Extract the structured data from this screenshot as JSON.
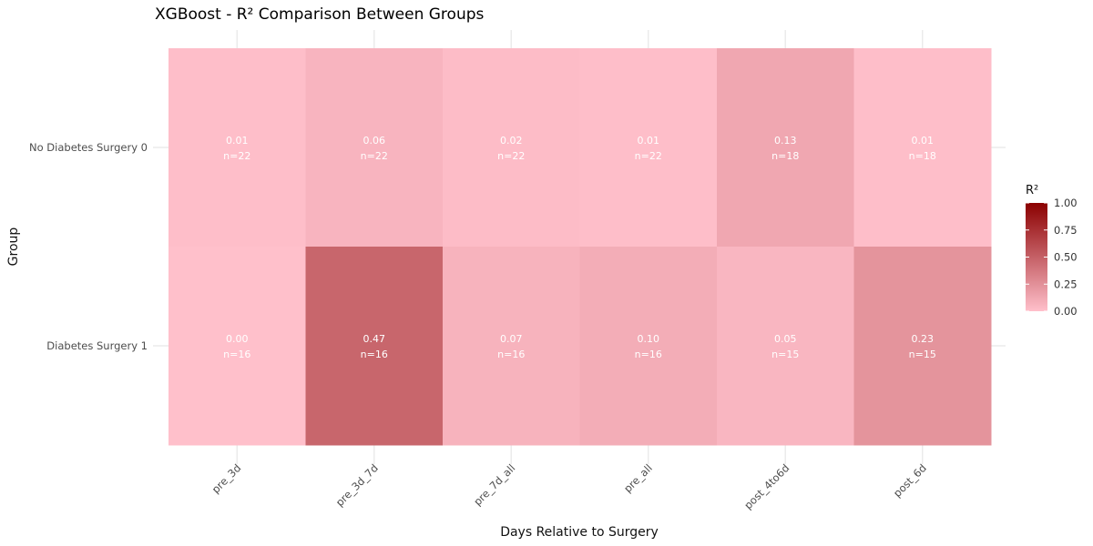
{
  "chart_data": {
    "type": "heatmap",
    "title": "XGBoost - R² Comparison Between Groups",
    "xlabel": "Days Relative to Surgery",
    "ylabel": "Group",
    "x_categories": [
      "pre_3d",
      "pre_3d_7d",
      "pre_7d_all",
      "pre_all",
      "post_4to6d",
      "post_6d"
    ],
    "y_categories": [
      "No Diabetes Surgery 0",
      "Diabetes Surgery 1"
    ],
    "values": [
      [
        0.01,
        0.06,
        0.02,
        0.01,
        0.13,
        0.01
      ],
      [
        0.0,
        0.47,
        0.07,
        0.1,
        0.05,
        0.23
      ]
    ],
    "value_labels": [
      [
        "0.01",
        "0.06",
        "0.02",
        "0.01",
        "0.13",
        "0.01"
      ],
      [
        "0.00",
        "0.47",
        "0.07",
        "0.10",
        "0.05",
        "0.23"
      ]
    ],
    "n_labels": [
      [
        "n=22",
        "n=22",
        "n=22",
        "n=22",
        "n=18",
        "n=18"
      ],
      [
        "n=16",
        "n=16",
        "n=16",
        "n=16",
        "n=15",
        "n=15"
      ]
    ],
    "legend": {
      "title": "R²",
      "range": [
        0,
        1
      ],
      "ticks": [
        "1.00",
        "0.75",
        "0.50",
        "0.25",
        "0.00"
      ],
      "low_color": "#ffc0cb",
      "high_color": "#8b0000",
      "placement": "right"
    },
    "grid": true
  }
}
